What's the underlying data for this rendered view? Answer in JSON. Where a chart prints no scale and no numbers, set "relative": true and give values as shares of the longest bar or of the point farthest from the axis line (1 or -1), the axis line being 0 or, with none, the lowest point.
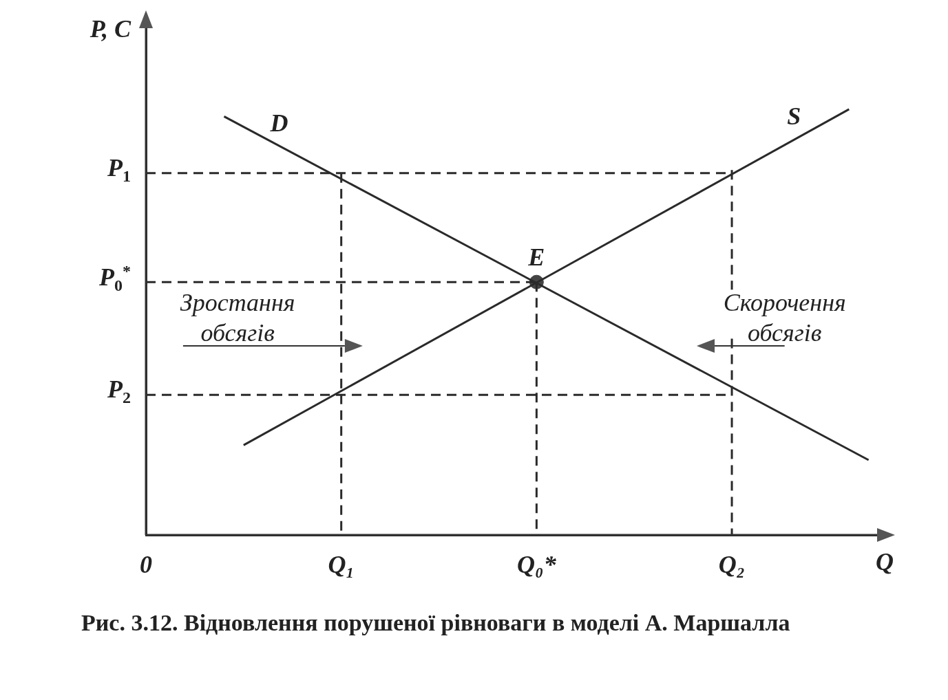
{
  "chart_data": {
    "type": "line",
    "relative": true,
    "xlabel": "Q",
    "ylabel": "P, C",
    "categories": [
      "0",
      null,
      null,
      null,
      null,
      null,
      null,
      null,
      null,
      null,
      "Q₁",
      null,
      null,
      null,
      null,
      null,
      null,
      null,
      null,
      null,
      "Q₀*",
      null,
      null,
      null,
      null,
      null,
      null,
      null,
      null,
      null,
      "Q₂",
      null,
      null,
      null,
      null,
      null,
      null,
      null,
      null
    ],
    "grid": false,
    "legend": false,
    "marker": "none",
    "line_style": "solid",
    "series": [
      {
        "name": "D",
        "color": "#2a2a2a",
        "values": [
          null,
          null,
          null,
          null,
          0.983,
          null,
          null,
          null,
          null,
          null,
          null,
          null,
          null,
          null,
          null,
          null,
          null,
          null,
          null,
          null,
          null,
          null,
          null,
          null,
          null,
          null,
          null,
          null,
          null,
          null,
          null,
          null,
          null,
          null,
          null,
          null,
          null,
          0.176,
          null
        ]
      },
      {
        "name": "S",
        "color": "#2a2a2a",
        "values": [
          null,
          null,
          null,
          null,
          null,
          0.211,
          null,
          null,
          null,
          null,
          null,
          null,
          null,
          null,
          null,
          null,
          null,
          null,
          null,
          null,
          null,
          null,
          null,
          null,
          null,
          null,
          null,
          null,
          null,
          null,
          null,
          null,
          null,
          null,
          null,
          null,
          1.0,
          null,
          null
        ]
      },
      {
        "color": "#2a2a2a",
        "line_style": "dashed",
        "x": [
          "0",
          "Q₂"
        ],
        "values": [
          0.85,
          0.85
        ]
      },
      {
        "color": "#2a2a2a",
        "line_style": "dashed",
        "x": [
          "Q₁",
          "Q₁"
        ],
        "values": [
          0.85,
          0
        ]
      },
      {
        "color": "#2a2a2a",
        "line_style": "dashed",
        "x": [
          "Q₂",
          "Q₂"
        ],
        "values": [
          0.857,
          0.576
        ]
      },
      {
        "color": "#2a2a2a",
        "line_style": "dashed",
        "x": [
          "Q₂",
          "Q₂"
        ],
        "values": [
          0.461,
          0
        ]
      },
      {
        "color": "#2a2a2a",
        "line_style": "dashed",
        "x": [
          "0",
          "Q₀*"
        ],
        "values": [
          0.594,
          0.594
        ]
      },
      {
        "color": "#2a2a2a",
        "line_style": "dashed",
        "x": [
          "Q₀*",
          "Q₀*"
        ],
        "values": [
          0.594,
          0
        ]
      },
      {
        "color": "#2a2a2a",
        "line_style": "dashed",
        "x": [
          "0",
          "Q₂"
        ],
        "values": [
          0.329,
          0.329
        ]
      },
      {
        "type": "scatter",
        "name": "E",
        "color": "#444444",
        "marker": "circle",
        "x": [
          "Q₀*"
        ],
        "values": [
          0.594
        ]
      }
    ],
    "annotations": [
      {
        "text": "P$_{1}$",
        "x": "0",
        "y": 0.85
      },
      {
        "text": "P$_{0}$$^{*}$",
        "x": "0",
        "y": 0.594
      },
      {
        "text": "P$_{2}$",
        "x": "0",
        "y": 0.329
      },
      "Зростання обсягів",
      "Скорочення обсягів",
      "Рис. 3.12. Відновлення порушеної рівноваги в моделі А. Маршалла"
    ]
  }
}
